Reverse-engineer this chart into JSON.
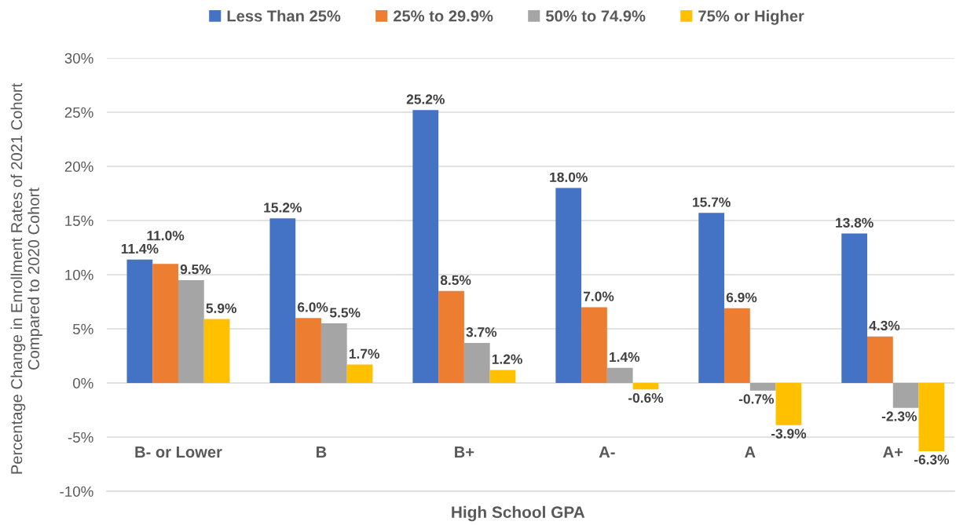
{
  "chart_data": {
    "type": "bar",
    "xlabel": "High School GPA",
    "ylabel": "Percentage Change in Enrollment Rates of 2021 Cohort\nCompared to 2020 Cohort",
    "categories": [
      "B- or Lower",
      "B",
      "B+",
      "A-",
      "A",
      "A+"
    ],
    "series": [
      {
        "name": "Less Than 25%",
        "color": "#4472c4",
        "values": [
          11.4,
          15.2,
          25.2,
          18.0,
          15.7,
          13.8
        ],
        "value_labels": [
          "11.4%",
          "15.2%",
          "25.2%",
          "18.0%",
          "15.7%",
          "13.8%"
        ]
      },
      {
        "name": "25% to 29.9%",
        "color": "#ed7d31",
        "values": [
          11.0,
          6.0,
          8.5,
          7.0,
          6.9,
          4.3
        ],
        "value_labels": [
          "11.0%",
          "6.0%",
          "8.5%",
          "7.0%",
          "6.9%",
          "4.3%"
        ]
      },
      {
        "name": "50% to 74.9%",
        "color": "#a5a5a5",
        "values": [
          9.5,
          5.5,
          3.7,
          1.4,
          -0.7,
          -2.3
        ],
        "value_labels": [
          "9.5%",
          "5.5%",
          "3.7%",
          "1.4%",
          "-0.7%",
          "-2.3%"
        ]
      },
      {
        "name": "75% or Higher",
        "color": "#ffc000",
        "values": [
          5.9,
          1.7,
          1.2,
          -0.6,
          -3.9,
          -6.3
        ],
        "value_labels": [
          "5.9%",
          "1.7%",
          "1.2%",
          "-0.6%",
          "-3.9%",
          "-6.3%"
        ]
      }
    ],
    "ylim": [
      -10,
      30
    ],
    "yticks": [
      {
        "value": -10,
        "label": "-10%"
      },
      {
        "value": -5,
        "label": "-5%"
      },
      {
        "value": 0,
        "label": "0%"
      },
      {
        "value": 5,
        "label": "5%"
      },
      {
        "value": 10,
        "label": "10%"
      },
      {
        "value": 15,
        "label": "15%"
      },
      {
        "value": 20,
        "label": "20%"
      },
      {
        "value": 25,
        "label": "25%"
      },
      {
        "value": 30,
        "label": "30%"
      }
    ],
    "grid": "y",
    "legend": "top"
  }
}
